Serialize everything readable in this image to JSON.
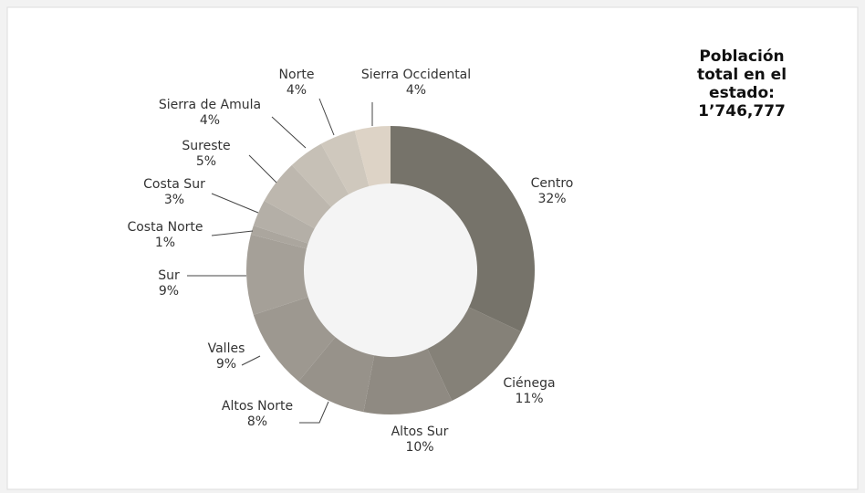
{
  "chart_data": {
    "type": "donut",
    "categories": [
      "Centro",
      "Ciénega",
      "Altos Sur",
      "Altos Norte",
      "Valles",
      "Sur",
      "Costa Norte",
      "Costa Sur",
      "Sureste",
      "Sierra de Amula",
      "Norte",
      "Sierra Occidental"
    ],
    "values": [
      32,
      11,
      10,
      8,
      9,
      9,
      1,
      3,
      5,
      4,
      4,
      4
    ],
    "value_labels": [
      "32%",
      "11%",
      "10%",
      "8%",
      "9%",
      "9%",
      "1%",
      "3%",
      "5%",
      "4%",
      "4%",
      "4%"
    ],
    "colors": [
      "#76736a",
      "#858178",
      "#8f8a82",
      "#97928a",
      "#9d9890",
      "#a5a098",
      "#aba69e",
      "#b4afa7",
      "#bdb7ae",
      "#c6c0b6",
      "#cfc8bd",
      "#ddd3c6"
    ],
    "annotation": [
      "Población",
      "total en el",
      "estado:",
      "1’746,777"
    ]
  }
}
